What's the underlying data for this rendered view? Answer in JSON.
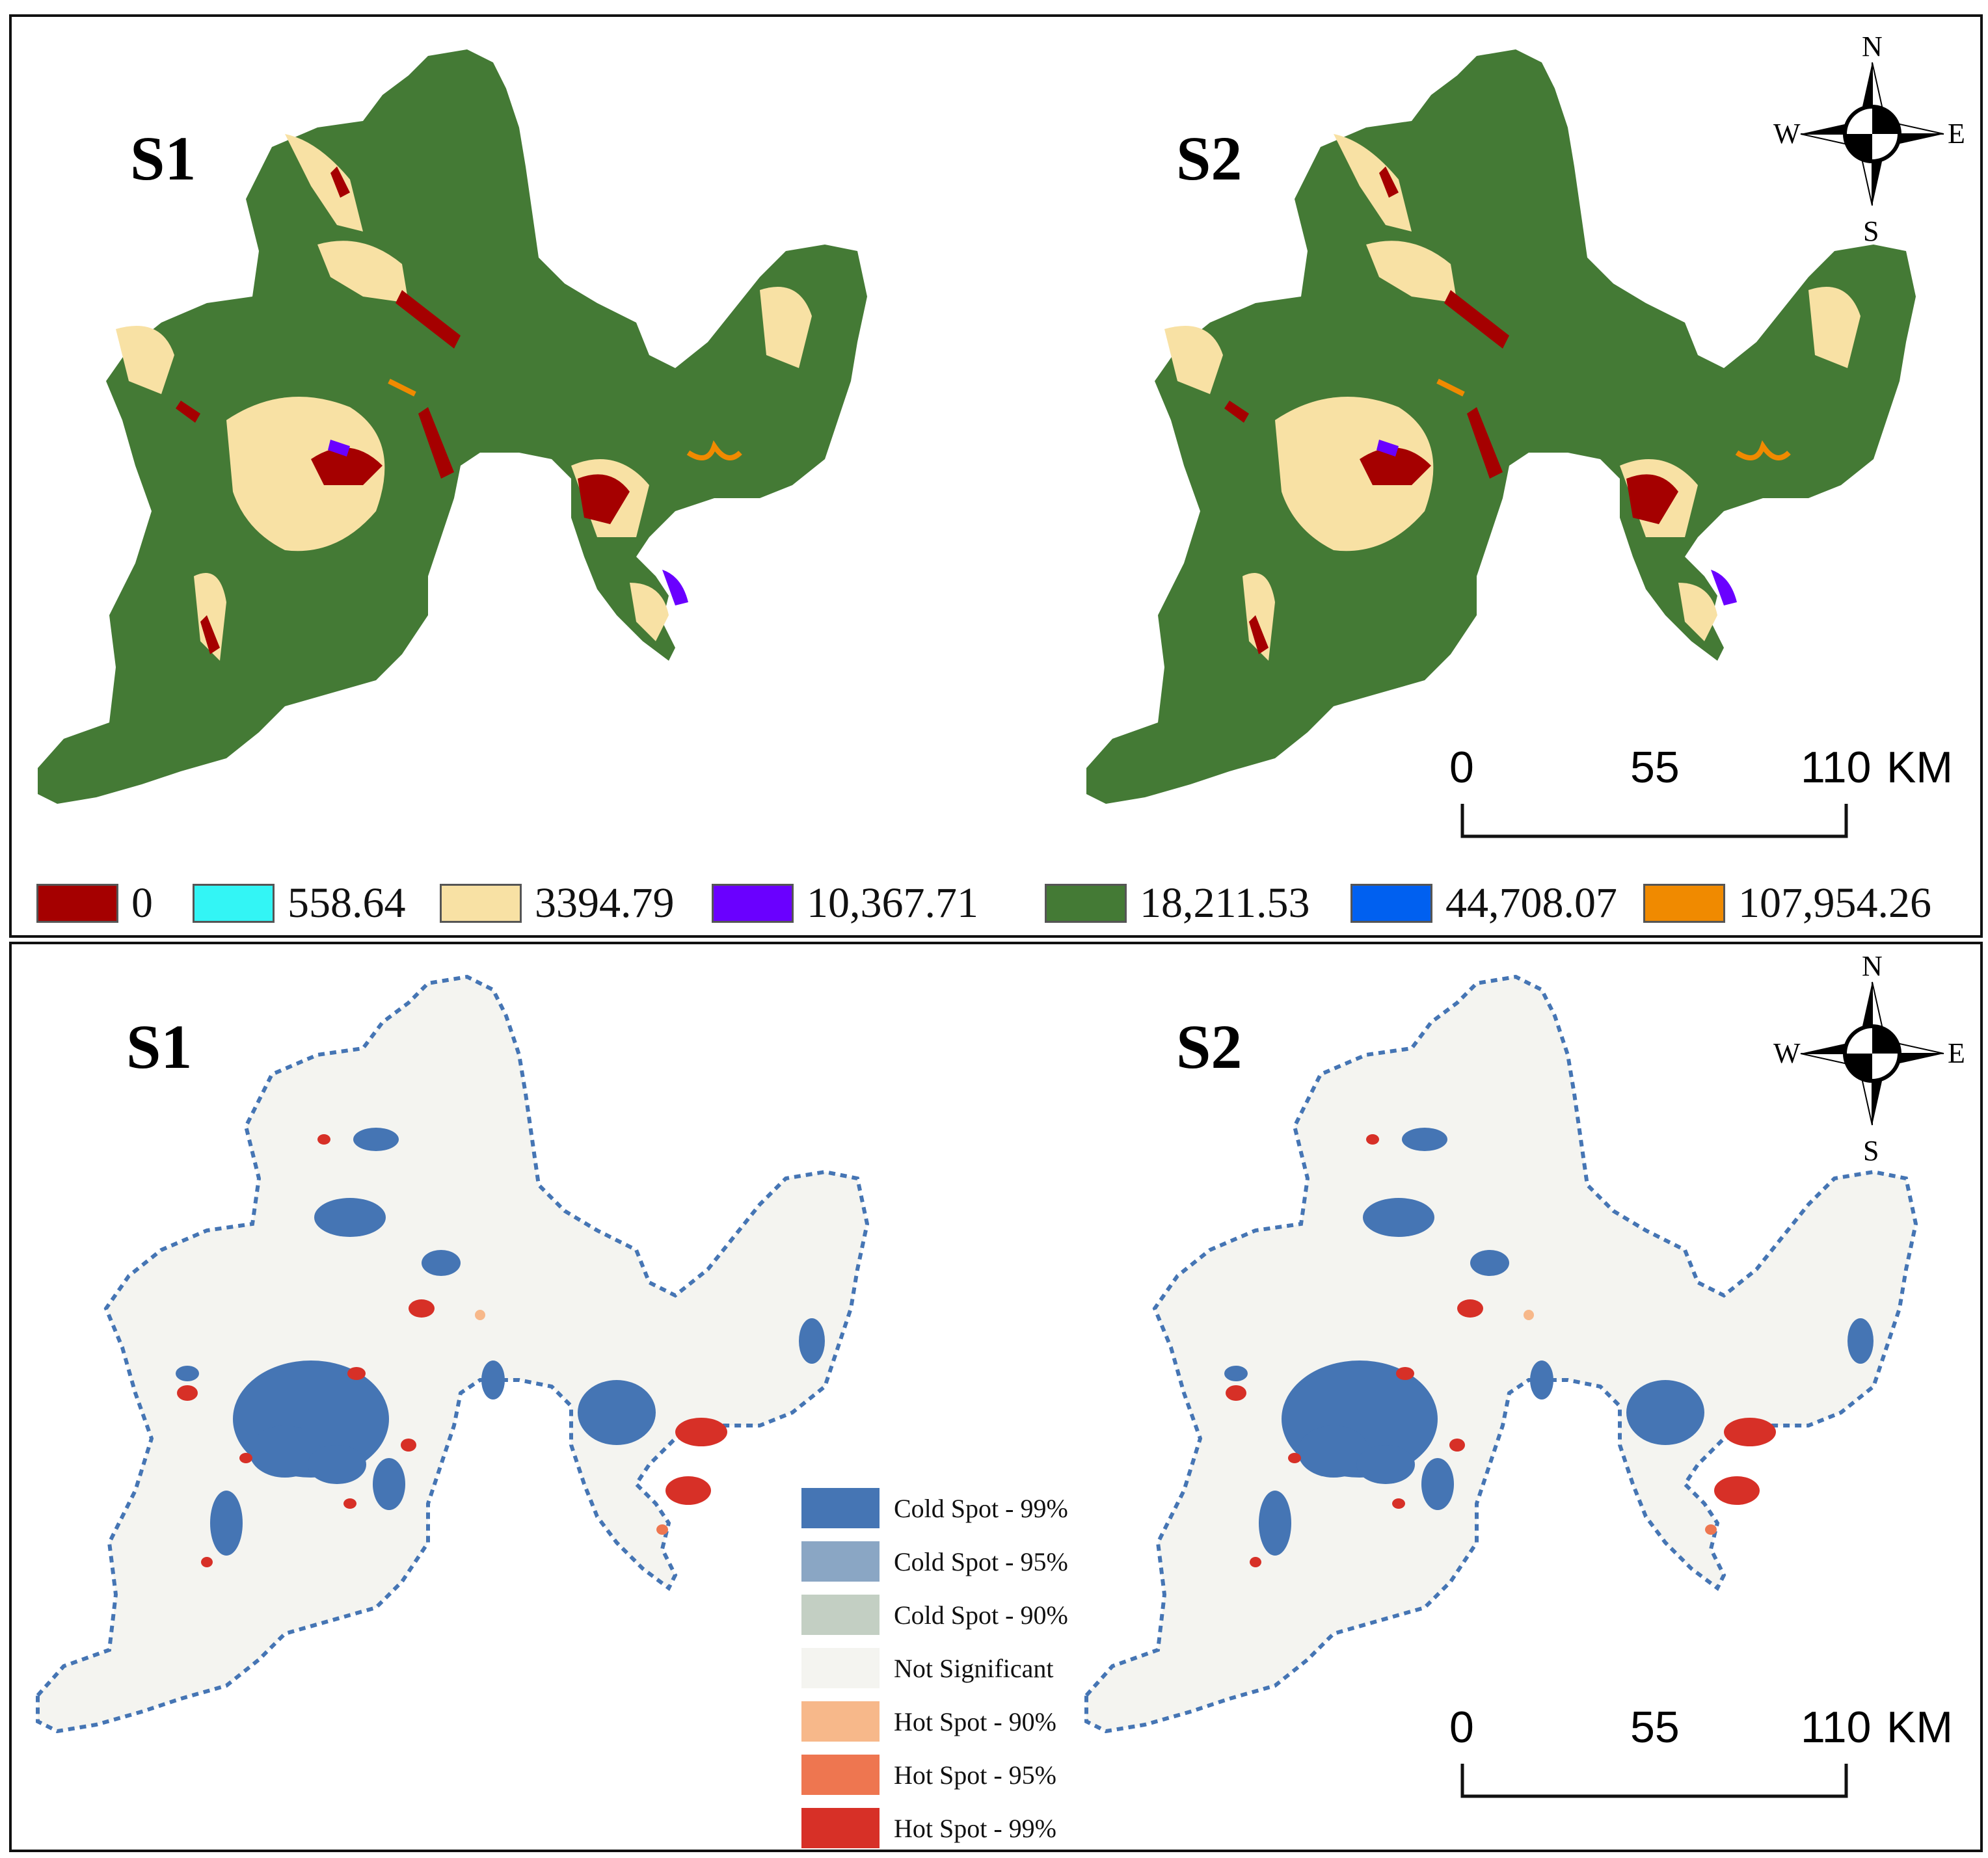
{
  "top_panel": {
    "maps": [
      {
        "label": "S1"
      },
      {
        "label": "S2"
      }
    ],
    "compass": {
      "n": "N",
      "s": "S",
      "e": "E",
      "w": "W"
    },
    "scale": {
      "ticks": [
        "0",
        "55",
        "110"
      ],
      "unit": "KM"
    },
    "legend": [
      {
        "label": "0",
        "color": "#a50000"
      },
      {
        "label": "558.64",
        "color": "#33f5f5"
      },
      {
        "label": "3394.79",
        "color": "#f8e1a4"
      },
      {
        "label": "10,367.71",
        "color": "#6a00ff"
      },
      {
        "label": "18,211.53",
        "color": "#447a35"
      },
      {
        "label": "44,708.07",
        "color": "#0060f0"
      },
      {
        "label": "107,954.26",
        "color": "#f08a00"
      }
    ]
  },
  "bottom_panel": {
    "maps": [
      {
        "label": "S1"
      },
      {
        "label": "S2"
      }
    ],
    "compass": {
      "n": "N",
      "s": "S",
      "e": "E",
      "w": "W"
    },
    "scale": {
      "ticks": [
        "0",
        "55",
        "110"
      ],
      "unit": "KM"
    },
    "legend": [
      {
        "label": "Cold Spot - 99%",
        "color": "#4575b4"
      },
      {
        "label": "Cold Spot - 95%",
        "color": "#8aa6c4"
      },
      {
        "label": "Cold Spot - 90%",
        "color": "#c3cfc3"
      },
      {
        "label": "Not Significant",
        "color": "#f4f4f0"
      },
      {
        "label": "Hot Spot - 90%",
        "color": "#f7b88a"
      },
      {
        "label": "Hot Spot - 95%",
        "color": "#ee7650"
      },
      {
        "label": "Hot Spot - 99%",
        "color": "#d73027"
      }
    ]
  }
}
